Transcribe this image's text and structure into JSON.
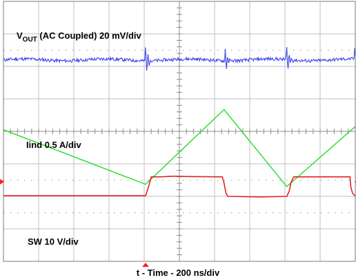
{
  "chart_data": {
    "type": "line",
    "title": "",
    "xlabel": "t - Time - 200 ns/div",
    "grid": true,
    "grid_divisions": {
      "x": 10,
      "y": 8
    },
    "x_range_div": [
      0,
      10
    ],
    "y_range_div": [
      0,
      8
    ],
    "channel_labels": {
      "vout": {
        "main": "V",
        "sub": "OUT",
        "rest": " (AC Coupled) 20 mV/div"
      },
      "iind": "Iind 0.5 A/div",
      "sw": "SW 10 V/div"
    },
    "colors": {
      "vout": "#3b46e6",
      "iind": "#22dd22",
      "sw": "#e02222",
      "grid": "#bfbfbf",
      "frame": "#777777",
      "marker": "#ff2020"
    },
    "series": [
      {
        "name": "SW",
        "unit_per_div": "10 V/div",
        "points": [
          [
            0,
            2.02
          ],
          [
            4.04,
            2.02
          ],
          [
            4.07,
            2.12
          ],
          [
            4.14,
            2.35
          ],
          [
            4.2,
            2.6
          ],
          [
            4.45,
            2.6
          ],
          [
            4.8,
            2.62
          ],
          [
            5.22,
            2.61
          ],
          [
            6.22,
            2.6
          ],
          [
            6.27,
            2.4
          ],
          [
            6.32,
            2.12
          ],
          [
            6.37,
            2.0
          ],
          [
            7.35,
            1.98
          ],
          [
            8.05,
            2.0
          ],
          [
            8.12,
            2.15
          ],
          [
            8.18,
            2.45
          ],
          [
            8.25,
            2.6
          ],
          [
            9.85,
            2.6
          ],
          [
            9.87,
            2.3
          ],
          [
            9.92,
            2.1
          ],
          [
            10,
            2.0
          ]
        ]
      },
      {
        "name": "Iind",
        "unit_per_div": "0.5 A/div",
        "points": [
          [
            0,
            4.05
          ],
          [
            4.04,
            2.37
          ],
          [
            6.27,
            4.67
          ],
          [
            8.05,
            2.3
          ],
          [
            10,
            4.15
          ]
        ]
      },
      {
        "name": "VOUT",
        "unit_per_div": "20 mV/div",
        "baseline_div": 6.2,
        "noise_div": 0.05,
        "spikes_at_div": [
          4.04,
          6.32,
          8.05,
          10.0
        ]
      }
    ],
    "markers": {
      "trigger_time_div": 4.04,
      "ground_ref_div": 2.45
    }
  }
}
